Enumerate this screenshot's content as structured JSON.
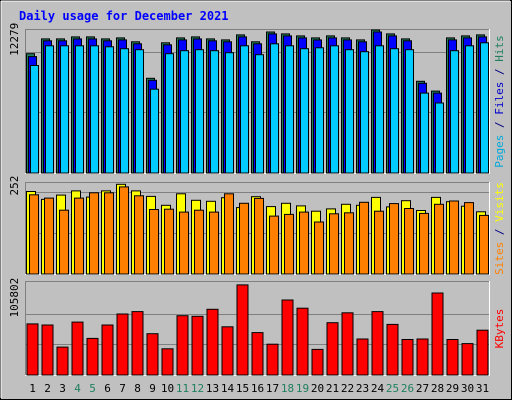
{
  "chart_data": {
    "type": "bar",
    "title": "Daily usage for December 2021",
    "days": [
      "1",
      "2",
      "3",
      "4",
      "5",
      "6",
      "7",
      "8",
      "9",
      "10",
      "11",
      "12",
      "13",
      "14",
      "15",
      "16",
      "17",
      "18",
      "19",
      "20",
      "21",
      "22",
      "23",
      "24",
      "25",
      "26",
      "27",
      "28",
      "29",
      "30",
      "31"
    ],
    "weekend_days": [
      "4",
      "5",
      "11",
      "12",
      "18",
      "19",
      "25",
      "26"
    ],
    "panels": [
      {
        "id": "requests",
        "tick_label": "12279",
        "tick_value": 12279,
        "ylim": [
          0,
          14500
        ],
        "axis_labels": [
          {
            "text": "Pages",
            "color": "#00aadd"
          },
          {
            "text": " / ",
            "color": "#000080"
          },
          {
            "text": "Files",
            "color": "#0000cc"
          },
          {
            "text": " / ",
            "color": "#000080"
          },
          {
            "text": "Hits",
            "color": "#208060"
          }
        ],
        "series": [
          {
            "name": "Hits",
            "color": "#208060",
            "values": [
              12100,
              13600,
              13600,
              13800,
              13800,
              13600,
              13700,
              13300,
              9600,
              13200,
              13700,
              13800,
              13600,
              13500,
              14000,
              13300,
              14300,
              14100,
              13900,
              13700,
              13900,
              13700,
              13500,
              14500,
              14100,
              13600,
              9300,
              8300,
              13700,
              13900,
              14000
            ]
          },
          {
            "name": "Files",
            "color": "#0000ff",
            "values": [
              11800,
              13400,
              13400,
              13600,
              13600,
              13400,
              13500,
              13100,
              9400,
              13000,
              13500,
              13600,
              13400,
              13300,
              13800,
              13100,
              14100,
              13900,
              13700,
              13500,
              13700,
              13500,
              13300,
              14300,
              13900,
              13400,
              9100,
              8100,
              13500,
              13700,
              13800
            ]
          },
          {
            "name": "Pages",
            "color": "#00ccff",
            "values": [
              10900,
              12900,
              12900,
              12900,
              12900,
              12800,
              12600,
              12500,
              8500,
              12100,
              12400,
              12500,
              12400,
              12200,
              12900,
              12000,
              13100,
              12900,
              12600,
              12700,
              12900,
              12500,
              12300,
              12900,
              12600,
              12500,
              8100,
              7100,
              12400,
              12900,
              13200
            ]
          }
        ]
      },
      {
        "id": "visitors",
        "tick_label": "252",
        "tick_value": 252,
        "ylim": [
          0,
          278
        ],
        "axis_labels": [
          {
            "text": "Sites",
            "color": "#ff8000"
          },
          {
            "text": " / ",
            "color": "#000080"
          },
          {
            "text": "Visits",
            "color": "#ffff00"
          }
        ],
        "series": [
          {
            "name": "Visits",
            "color": "#ffff00",
            "values": [
              252,
              228,
              241,
              254,
              235,
              254,
              274,
              254,
              237,
              210,
              245,
              225,
              222,
              233,
              203,
              236,
              206,
              216,
              208,
              192,
              199,
              213,
              210,
              234,
              205,
              224,
              194,
              234,
              221,
              207,
              190
            ]
          },
          {
            "name": "Sites",
            "color": "#ff8000",
            "values": [
              242,
              232,
              195,
              232,
              248,
              248,
              266,
              239,
              197,
              198,
              189,
              195,
              189,
              245,
              216,
              231,
              177,
              182,
              189,
              159,
              184,
              187,
              219,
              192,
              215,
              200,
              185,
              213,
              223,
              218,
              179
            ]
          }
        ]
      },
      {
        "id": "kbytes",
        "tick_label": "105802",
        "tick_value": 105802,
        "ylim": [
          0,
          160000
        ],
        "axis_labels": [
          {
            "text": "KBytes",
            "color": "#ff0000"
          }
        ],
        "series": [
          {
            "name": "KBytes",
            "color": "#ff0000",
            "values": [
              88000,
              86000,
              48000,
              91000,
              63000,
              86000,
              105000,
              109000,
              71000,
              45000,
              102000,
              101000,
              113000,
              83000,
              155000,
              73000,
              53000,
              129000,
              115000,
              44000,
              90000,
              107000,
              62000,
              109000,
              87000,
              61000,
              62000,
              141000,
              61000,
              54000,
              77000
            ]
          }
        ]
      }
    ],
    "colors": {
      "background": "#c0c0c0",
      "title": "#0000ff",
      "day_label": "#000000",
      "weekend_label": "#208060"
    }
  }
}
